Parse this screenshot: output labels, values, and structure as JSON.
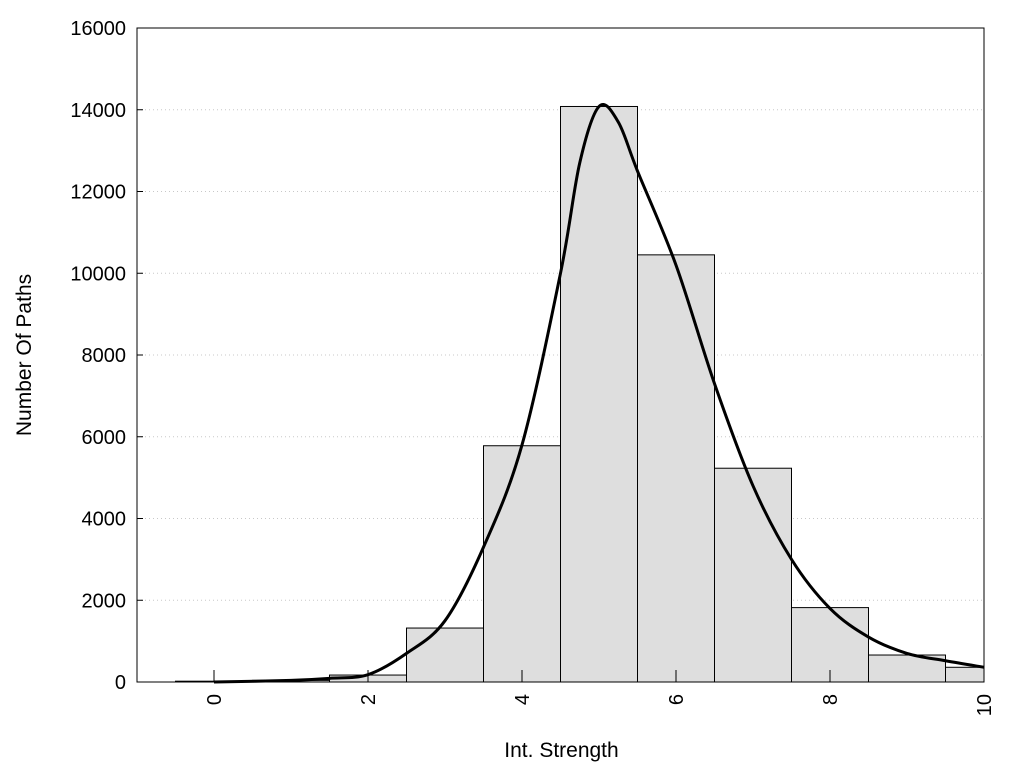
{
  "chart_data": {
    "type": "bar",
    "title": "",
    "xlabel": "Int. Strength",
    "ylabel": "Number Of Paths",
    "xlim": [
      -1,
      10
    ],
    "ylim": [
      0,
      16000
    ],
    "x_ticks": [
      0,
      2,
      4,
      6,
      8,
      10
    ],
    "y_ticks": [
      0,
      2000,
      4000,
      6000,
      8000,
      10000,
      12000,
      14000,
      16000
    ],
    "grid": "horizontal dotted",
    "bar_width": 1,
    "bars": [
      {
        "x": 0,
        "value": 20
      },
      {
        "x": 1,
        "value": 40
      },
      {
        "x": 2,
        "value": 170
      },
      {
        "x": 3,
        "value": 1320
      },
      {
        "x": 4,
        "value": 5780
      },
      {
        "x": 5,
        "value": 14080
      },
      {
        "x": 6,
        "value": 10450
      },
      {
        "x": 7,
        "value": 5230
      },
      {
        "x": 8,
        "value": 1820
      },
      {
        "x": 9,
        "value": 660
      },
      {
        "x": 10,
        "value": 360
      }
    ],
    "curve": {
      "x": [
        0,
        1,
        1.5,
        2,
        2.5,
        3,
        3.5,
        4,
        4.5,
        4.75,
        5,
        5.25,
        5.5,
        6,
        6.5,
        7,
        7.5,
        8,
        8.5,
        9,
        9.5,
        10
      ],
      "y": [
        0,
        40,
        90,
        180,
        700,
        1500,
        3300,
        5800,
        10000,
        12700,
        14080,
        13700,
        12500,
        10200,
        7300,
        4800,
        3000,
        1800,
        1100,
        700,
        520,
        360
      ]
    },
    "colors": {
      "bar_fill": "#dedede",
      "bar_stroke": "#000000",
      "curve": "#000000",
      "grid": "#c8c8c8"
    }
  }
}
